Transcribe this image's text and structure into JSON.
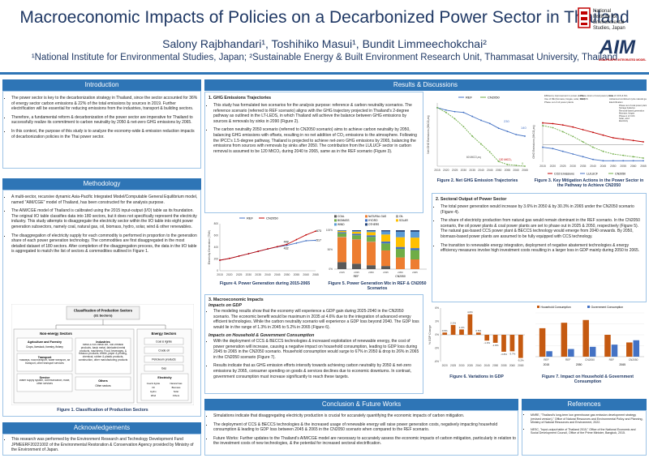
{
  "header": {
    "title": "Macroeconomic Impacts of Policies on a Decarbonized Power Sector in Thailand",
    "authors": "Salony Rajbhandari¹, Toshihiko Masui¹, Bundit Limmeechokchai²",
    "affiliations": "¹National Institute for Environmental Studies, Japan; ²Sustainable Energy & Built Environment Research Unit, Thammasat University, Thailand",
    "logo_nies_text": [
      "National",
      "Institute for",
      "Environmental",
      "Studies, Japan"
    ],
    "logo_aim_text": "AIM",
    "logo_aim_sub": "ASIA-PACIFIC INTEGRATED MODEL"
  },
  "intro": {
    "title": "Introduction",
    "bullets": [
      "The power sector is key to the decarbonization strategy in Thailand, since the sector accounted for 36% of energy sector carbon emissions & 22% of the total emissions by sources in 2019. Further electrification will be essential for reducing emissions from the industries, transport & building sectors.",
      "Therefore, a fundamental reform & decarbonization of the power sector are imperative for Thailand to successfully realize its commitment to carbon neutrality by 2050 & net-zero GHG emissions by 2065.",
      "In this context, the purpose of this study is to analyze the economy-wide & emission reduction impacts of decarbonization policies in the Thai power sector."
    ]
  },
  "method": {
    "title": "Methodology",
    "bullets": [
      "A multi-sector, recursive dynamic Asia-Pacific Integrated Model/Computable General Equilibrium model, named \"AIM/CGE\" model of Thailand, has been constructed for the analysis purpose.",
      "The AIM/CGE model of Thailand is calibrated using the 2015 input-output (I/O) table as its foundation. The original I/O table classifies data into 180 sectors, but it does not specifically represent the electricity industry. This study attempts to disaggregate the electricity sector within the I/O table into eight power generation subsectors, namely coal, natural gas, oil, biomass, hydro, solar, wind & other renewables.",
      "The disaggregation of electricity supply for each commodity is performed in proportion to the generation share of each power generation technology. The commodities are first disaggregated in the most detailed dataset of 180 sectors. After completion of the disaggregation process, the data in the I/O table is aggregated to match the list of sectors & commodities outlined in Figure 1."
    ],
    "fig1": {
      "root": "Classification of Production Sectors",
      "root_sub": "(31 Sectors)",
      "non_energy": "Non-energy Sectors",
      "energy": "Energy Sectors",
      "agri_title": "Agriculture and Forestry",
      "agri_body": "Crops, livestock, forestry, fishery",
      "transport_title": "Transport",
      "transport_body": "Railways, road transport, water transport, air transport, other transport services",
      "service_title": "Service",
      "service_body": "Water supply system, communication, trade, other services",
      "industries_title": "Industries",
      "industries_body": "Metal & non-metal ore, non-metallic products, basic metal, fabricated metal products, machinery, Food, beverages, & tobacco products, textile, paper & printing, chemical, rubber & plastic products, construction, other manufacturing products",
      "others_title": "Others",
      "others_body": "Other sectors",
      "energy_items": [
        "Coal & lignite",
        "Crude oil",
        "Petroleum products",
        "Gas"
      ],
      "electricity_title": "Electricity",
      "electricity_items": [
        "Coal & lignite",
        "Natural Gas",
        "Oil",
        "Biomass",
        "Hydro",
        "Solar",
        "Wind",
        "Others"
      ],
      "caption": "Figure 1. Classification of Production Sectors"
    }
  },
  "ack": {
    "title": "Acknowledgements",
    "bullets": [
      "This research was performed by the Environment Research and Technology Development Fund JPMEERF20221002 of the Environmental Restoration & Conservation Agency provided by Ministry of the Environment of Japan."
    ]
  },
  "results": {
    "title": "Results & Discussions",
    "s1": {
      "heading": "1.  GHG Emissions Trajectories",
      "bullets": [
        "This study has formulated two scenarios for the analysis purpose: reference & carbon neutrality scenarios. The reference scenario (referred to REF scenario) aligns with the GHG trajectory projected in Thailand's 2-degree pathway as outlined in the LT-LEDS, in which Thailand will achieve the balance between GHG emissions by sources & removals by sinks in 2090 (Figure 2).",
        "The carbon neutrality 2050 scenario (referred to CN2050 scenario) aims to achieve carbon neutrality by 2050, balancing GHG emissions with offsets, resulting in no net addition of CO₂ emissions to the atmosphere. Following the IPCC's 1.5-degree pathway, Thailand is projected to achieve net-zero GHG emissions by 2065, balancing the emissions from sources with removals by sinks after 2050. The contribution from the LULUCF sector in carbon removal is assumed to be 120 MtCO₂ during 2040 to 2065, same as in the REF scenario (Figure 3)."
      ]
    },
    "s2": {
      "heading": "2.  Sectoral Output of Power Sector",
      "bullets": [
        "The total power generation would increase by 3.6% in 2050 & by 30.3% in 2065 under the CN2050 scenario (Figure 4).",
        "The share of electricity production from natural gas would remain dominant in the REF scenario. In the CN2050 scenario, the oil power plants & coal power plants are set to phase out in 2025 & 2050, respectively (Figure 5). The natural gas-based CCS power plant & BECCS technology would emerge from 2040 onwards. By 2050, biomass-based power plants are assumed to be fully equipped with CCS technology.",
        "The transition to renewable energy integration, deployment of negative abatement technologies & energy efficiency measures involve high investment costs resulting in a larger loss in GDP mainly during 2050 to 2065."
      ]
    },
    "s3": {
      "heading": "3.  Macroeconomic Impacts",
      "sub1": "Impacts on GDP",
      "bullets1": [
        "The modeling results show that the economy will experience a GDP gain during 2025-2040 in the CN2050 scenario. The economic benefit would be maximum in 2035 at 4.6% due to the integration of advanced energy efficient technologies. While the carbon neutrality scenario will experience a GDP loss beyond 2040. The GDP loss would lie in the range of 1.3% in 2045 to 5.2% in 2065 (Figure 6)."
      ],
      "sub2": "Impacts on Household & Government Consumption",
      "bullets2": [
        "With the deployment of CCS & BECCS technologies & increased exploitation of renewable energy, the cost of power generation will increase, causing a negative impact on household consumption, leading to GDP loss during 2045 to 2065 in the CN2050 scenario. Household consumption would surge to 67% in 2050 & drop to 26% in 2065 in the CN2050 scenario (Figure 7).",
        "Results indicate that as GHG emission efforts intensify towards achieving carbon neutrality by 2050 & net-zero emissions by 2065, consumer spending on goods & services declines due to economic downturns. In contrast, government consumption must increase significantly to reach these targets."
      ]
    },
    "captions": {
      "fig2": "Figure 2. Net GHG Emission Trajectories",
      "fig3": "Figure 3. Key Mitigation Actions in the Power Sector in the Pathway to Achieve CN2050",
      "fig4": "Figure 4. Power Generation during 2015-2065",
      "fig5": "Figure 5. Power Generation Mix in REF & CN2050 Scenarios",
      "fig6": "Figure 6. Variations in GDP",
      "fig7": "Figure 7. Impact on Household & Government Consumption"
    },
    "fig3_notes": [
      "Efficiency improvement in power plants",
      "Use of RE (biomass, biogas, solar, wind)",
      "Phase out of oil power plants",
      "Phase down of coal power plants",
      "BECCS",
      "Use of CCS & NG",
      "Advanced combined cycle natural gas plant",
      "Electrification",
      "Phase out of coal power plants",
      "Storage batteries",
      "Removal-based generation",
      "Biomass, biogas",
      "Phase-in of CCS",
      "Solar, wind",
      "Electricity"
    ]
  },
  "conclusion": {
    "title": "Conclusion & Future Works",
    "bullets": [
      "Simulations indicate that disaggregating electricity production is crucial for accurately quantifying the economic impacts of carbon mitigation.",
      "The deployment of CCS & BECCS technologies & the increased usage of renewable energy will raise power generation costs, negatively impacting household consumption & leading to GDP loss between 2045 & 2065 in the CN2050 scenario when compared to the REF scenario.",
      "Future Works: Further updates to the Thailand's AIM/CGE model are necessary to accurately assess the economic impacts of carbon mitigation, particularly in relation to the investment costs of new technologies, & the potential for increased sectoral electrification."
    ]
  },
  "references": {
    "title": "References",
    "items": [
      "MNRE, \"Thailand's long-term low greenhouse gas emission development strategy (revised version),\" Office of Natural Resources and Environmental Policy and Planning, Ministry of Natural Resources and Environment, 2022.",
      "NESC, \"Input-output table of Thailand 2015,\" Office of the National Economic and Social Development Council, Office of the Prime Minister, Bangkok, 2015."
    ]
  },
  "chart_data": [
    {
      "type": "line",
      "ylabel": "Net GHG Emissions (MtCO₂eq)",
      "x": [
        2015,
        2020,
        2025,
        2030,
        2035,
        2040,
        2045,
        2050,
        2055,
        2060,
        2065
      ],
      "series": [
        {
          "name": "REF",
          "values": [
            370,
            355,
            345,
            340,
            315,
            290,
            270,
            240,
            220,
            200,
            190
          ]
        },
        {
          "name": "CN2050",
          "values": [
            370,
            340,
            300,
            250,
            190,
            140,
            90,
            30,
            10,
            5,
            0
          ]
        }
      ],
      "annotations": [
        "230",
        "140",
        "0",
        "60 MtCO₂eq",
        "120 MtCO₂"
      ],
      "ylim": [
        0,
        400
      ],
      "colors": {
        "REF": "#4472c4",
        "CN2050": "#70ad47"
      }
    },
    {
      "type": "line",
      "ylabel": "GHG Emissions (MtCO₂eq)",
      "x": [
        2015,
        2020,
        2025,
        2030,
        2035,
        2040,
        2045,
        2050,
        2055,
        2060,
        2065
      ],
      "series": [
        {
          "name": "CO2 Emissions",
          "values": [
            160,
            155,
            145,
            130,
            110,
            90,
            70,
            50,
            40,
            30,
            20
          ]
        },
        {
          "name": "LULUCF",
          "values": [
            -20,
            -30,
            -50,
            -70,
            -90,
            -110,
            -120,
            -120,
            -120,
            -120,
            -120
          ]
        },
        {
          "name": "CN2050",
          "values": [
            140,
            125,
            95,
            60,
            20,
            -20,
            -50,
            -70,
            -80,
            -90,
            -100
          ]
        }
      ],
      "colors": {
        "CO2 Emissions": "#c00000",
        "LULUCF": "#4472c4",
        "CN2050": "#70ad47"
      }
    },
    {
      "type": "line",
      "ylabel": "Electricity Generation (TWh)",
      "x": [
        2015,
        2020,
        2025,
        2030,
        2035,
        2040,
        2045,
        2050,
        2055,
        2060,
        2065
      ],
      "series": [
        {
          "name": "REF",
          "values": [
            180,
            210,
            250,
            290,
            330,
            370,
            405,
            432,
            470,
            510,
            517
          ]
        },
        {
          "name": "CN2050",
          "values": [
            180,
            210,
            250,
            290,
            330,
            372,
            410,
            448,
            530,
            610,
            673
          ]
        }
      ],
      "data_labels": [
        "673",
        "517",
        "448",
        "432"
      ],
      "ylim": [
        0,
        800
      ],
      "colors": {
        "REF": "#4472c4",
        "CN2050": "#c00000"
      }
    },
    {
      "type": "bar",
      "stacked": true,
      "categories": [
        "REF 2015",
        "REF 2035",
        "REF 2050",
        "CN2050 2035",
        "CN2050 2050",
        "CN2050 2065"
      ],
      "group_labels": [
        "REF",
        "CN2050"
      ],
      "series": [
        {
          "name": "COAL",
          "values": [
            18,
            14,
            10,
            8,
            0,
            0
          ]
        },
        {
          "name": "NATURAL GAS",
          "values": [
            64,
            62,
            60,
            40,
            30,
            25
          ]
        },
        {
          "name": "OIL",
          "values": [
            1,
            1,
            1,
            0,
            0,
            0
          ]
        },
        {
          "name": "BIOMASS",
          "values": [
            9,
            10,
            12,
            18,
            22,
            24
          ]
        },
        {
          "name": "HYDRO",
          "values": [
            3,
            4,
            4,
            5,
            5,
            5
          ]
        },
        {
          "name": "SOLAR",
          "values": [
            3,
            5,
            8,
            18,
            25,
            27
          ]
        },
        {
          "name": "WIND",
          "values": [
            1,
            2,
            3,
            8,
            14,
            15
          ]
        },
        {
          "name": "OTHERS",
          "values": [
            1,
            2,
            2,
            3,
            4,
            4
          ]
        }
      ],
      "ylim": [
        0,
        100
      ],
      "colors": {
        "COAL": "#595959",
        "NATURAL GAS": "#ed7d31",
        "OIL": "#a5a5a5",
        "BIOMASS": "#70ad47",
        "HYDRO": "#4472c4",
        "SOLAR": "#ffc000",
        "WIND": "#5b9bd5",
        "OTHERS": "#264478"
      }
    },
    {
      "type": "bar",
      "ylabel": "% GDP Change",
      "categories": [
        "2020",
        "2025",
        "2030",
        "2035",
        "2040",
        "2045",
        "2050",
        "2055",
        "2060",
        "2065"
      ],
      "values": [
        0.5,
        2.2,
        1.2,
        4.6,
        0.5,
        -1.3,
        -1.8,
        -3.8,
        -3.7,
        -5.2
      ],
      "data_labels": [
        "0.5%",
        "2.2%",
        "1.2%",
        "4.6%",
        "0.5%",
        "-1.3%",
        "-1.8%",
        "-3.8%",
        "-3.7%",
        "-5.2%"
      ],
      "ylim": [
        -6,
        6
      ],
      "colors": {
        "bar": "#c55a11"
      }
    },
    {
      "type": "bar",
      "categories": [
        "REF 2015",
        "REF 2050",
        "CN2050 2050",
        "REF 2065",
        "CN2050 2065"
      ],
      "tick_labels": [
        "REF",
        "REF",
        "CN2050",
        "REF",
        "CN2050"
      ],
      "group_labels": [
        "2015",
        "2050",
        "2065"
      ],
      "series": [
        {
          "name": "Household Consumption",
          "values": [
            52,
            62,
            67,
            40,
            26
          ]
        },
        {
          "name": "Government Consumption",
          "values": [
            10,
            14,
            18,
            22,
            30
          ]
        }
      ],
      "ylim": [
        0,
        80
      ],
      "colors": {
        "Household Consumption": "#c55a11",
        "Government Consumption": "#4472c4"
      }
    }
  ]
}
